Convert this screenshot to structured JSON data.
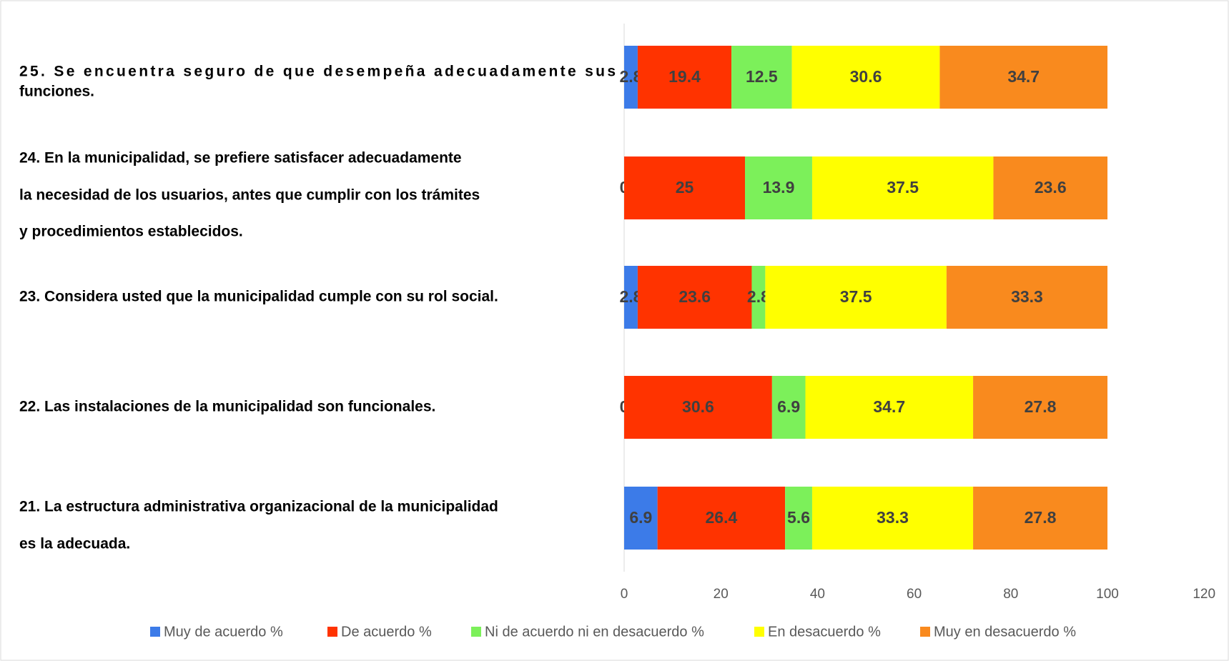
{
  "chart_data": {
    "type": "stacked-barh",
    "categories": [
      [
        "25. Se encuentra seguro de  que desempeña adecuadamente sus",
        "funciones."
      ],
      [
        "24. En la municipalidad, se prefiere satisfacer adecuadamente",
        "la necesidad de los usuarios, antes que cumplir con los trámites",
        " y procedimientos establecidos."
      ],
      [
        "23. Considera usted que la municipalidad cumple con su rol social."
      ],
      [
        "22. Las instalaciones de la municipalidad son funcionales."
      ],
      [
        "21. La estructura administrativa organizacional de la municipalidad",
        "es la adecuada."
      ]
    ],
    "series": [
      {
        "name": "Muy de acuerdo %",
        "color": "#3c7be8",
        "values": [
          2.8,
          0,
          2.8,
          0,
          6.9
        ]
      },
      {
        "name": "De acuerdo %",
        "color": "#ff3300",
        "values": [
          19.4,
          25,
          23.6,
          30.6,
          26.4
        ]
      },
      {
        "name": "Ni de acuerdo ni en desacuerdo %",
        "color": "#7cf05a",
        "values": [
          12.5,
          13.9,
          2.8,
          6.9,
          5.6
        ]
      },
      {
        "name": "En desacuerdo %",
        "color": "#ffff00",
        "values": [
          30.6,
          37.5,
          37.5,
          34.7,
          33.3
        ]
      },
      {
        "name": "Muy en desacuerdo %",
        "color": "#f98a1e",
        "values": [
          34.7,
          23.6,
          33.3,
          27.8,
          27.8
        ]
      }
    ],
    "xlim": [
      0,
      120
    ],
    "xticks": [
      0,
      20,
      40,
      60,
      80,
      100,
      120
    ],
    "legend": "bottom"
  }
}
